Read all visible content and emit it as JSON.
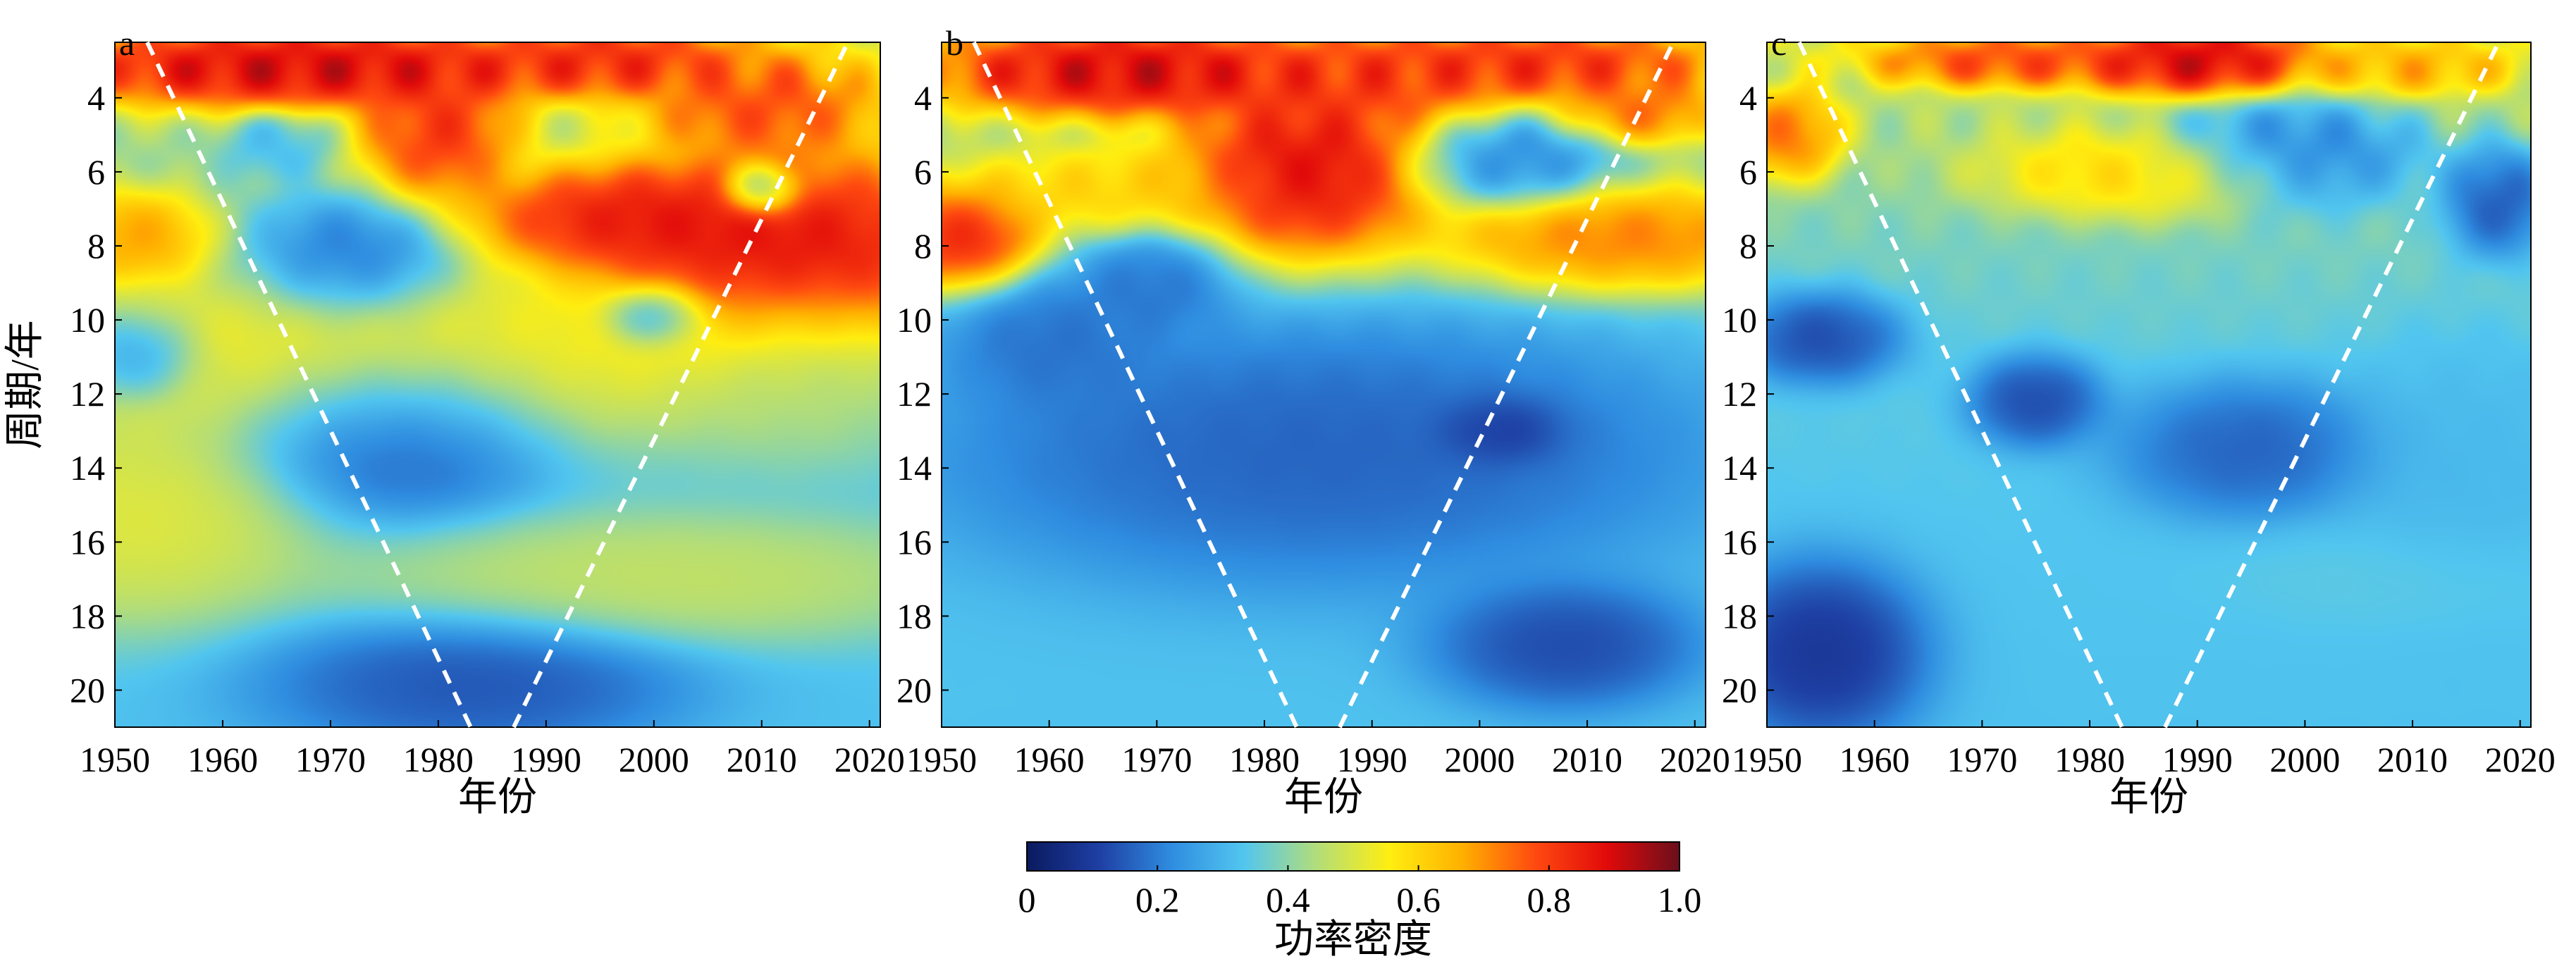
{
  "chart_data": [
    {
      "type": "heatmap",
      "panel_label": "a",
      "xlabel": "年份",
      "ylabel": "周期/年",
      "xlim": [
        1950,
        2021
      ],
      "ylim": [
        2.5,
        21
      ],
      "y_inverted": true,
      "xticks": [
        1950,
        1960,
        1970,
        1980,
        1990,
        2000,
        2010,
        2020
      ],
      "yticks": [
        4,
        6,
        8,
        10,
        12,
        14,
        16,
        18,
        20
      ],
      "cone_of_influence": {
        "left": [
          [
            1953,
            2.5
          ],
          [
            1983,
            21
          ]
        ],
        "right": [
          [
            1987,
            21
          ],
          [
            2018,
            2.5
          ]
        ]
      },
      "hotspots": [
        {
          "x": 1967,
          "y": 3.2,
          "rx": 20,
          "ry": 0.9,
          "v": 1.0
        },
        {
          "x": 2013,
          "y": 8.2,
          "rx": 16,
          "ry": 2.3,
          "v": 1.0
        },
        {
          "x": 1997,
          "y": 7.3,
          "rx": 12,
          "ry": 1.2,
          "v": 0.95
        },
        {
          "x": 1980,
          "y": 5.0,
          "rx": 6,
          "ry": 1.5,
          "v": 0.9
        },
        {
          "x": 2010,
          "y": 4.2,
          "rx": 9,
          "ry": 1.2,
          "v": 0.85
        },
        {
          "x": 1996,
          "y": 3.0,
          "rx": 10,
          "ry": 0.8,
          "v": 0.9
        },
        {
          "x": 1952,
          "y": 7.8,
          "rx": 6,
          "ry": 1.1,
          "v": 0.75
        },
        {
          "x": 1952,
          "y": 15.4,
          "rx": 14,
          "ry": 2.4,
          "v": 0.55
        },
        {
          "x": 1975,
          "y": 11.0,
          "rx": 30,
          "ry": 2.2,
          "v": 0.6
        },
        {
          "x": 2014,
          "y": 11.5,
          "rx": 10,
          "ry": 2.0,
          "v": 0.45
        },
        {
          "x": 2000,
          "y": 17.0,
          "rx": 25,
          "ry": 1.5,
          "v": 0.5
        }
      ],
      "coldspots": [
        {
          "x": 1976,
          "y": 13.0,
          "rx": 12,
          "ry": 2.0,
          "v": 0.08
        },
        {
          "x": 1983,
          "y": 19.8,
          "rx": 16,
          "ry": 1.6,
          "v": 0.1
        },
        {
          "x": 1972,
          "y": 8.5,
          "rx": 8,
          "ry": 1.4,
          "v": 0.12
        },
        {
          "x": 2000,
          "y": 9.9,
          "rx": 4,
          "ry": 0.7,
          "v": 0.15
        },
        {
          "x": 1952,
          "y": 11.0,
          "rx": 5,
          "ry": 1.0,
          "v": 0.15
        },
        {
          "x": 2010,
          "y": 6.5,
          "rx": 3,
          "ry": 0.6,
          "v": 0.2
        },
        {
          "x": 1965,
          "y": 5.3,
          "rx": 4,
          "ry": 0.7,
          "v": 0.3
        }
      ]
    },
    {
      "type": "heatmap",
      "panel_label": "b",
      "xlabel": "年份",
      "ylabel": "",
      "xlim": [
        1950,
        2021
      ],
      "ylim": [
        2.5,
        21
      ],
      "y_inverted": true,
      "xticks": [
        1950,
        1960,
        1970,
        1980,
        1990,
        2000,
        2010,
        2020
      ],
      "yticks": [
        4,
        6,
        8,
        10,
        12,
        14,
        16,
        18,
        20
      ],
      "cone_of_influence": {
        "left": [
          [
            1953,
            2.5
          ],
          [
            1983,
            21
          ]
        ],
        "right": [
          [
            1987,
            21
          ],
          [
            2018,
            2.5
          ]
        ]
      },
      "hotspots": [
        {
          "x": 1967,
          "y": 3.3,
          "rx": 15,
          "ry": 1.0,
          "v": 1.0
        },
        {
          "x": 1984,
          "y": 6.0,
          "rx": 10,
          "ry": 2.0,
          "v": 1.0
        },
        {
          "x": 1952,
          "y": 7.8,
          "rx": 6,
          "ry": 1.2,
          "v": 0.95
        },
        {
          "x": 2013,
          "y": 7.8,
          "rx": 14,
          "ry": 1.2,
          "v": 0.8
        },
        {
          "x": 2005,
          "y": 3.1,
          "rx": 14,
          "ry": 0.8,
          "v": 0.9
        },
        {
          "x": 1990,
          "y": 3.5,
          "rx": 10,
          "ry": 1.0,
          "v": 0.85
        },
        {
          "x": 2015,
          "y": 4.3,
          "rx": 6,
          "ry": 0.8,
          "v": 0.8
        },
        {
          "x": 1965,
          "y": 6.5,
          "rx": 12,
          "ry": 1.0,
          "v": 0.65
        }
      ],
      "coldspots": [
        {
          "x": 1985,
          "y": 13.5,
          "rx": 30,
          "ry": 3.0,
          "v": 0.12
        },
        {
          "x": 2008,
          "y": 18.8,
          "rx": 10,
          "ry": 1.4,
          "v": 0.08
        },
        {
          "x": 2002,
          "y": 13.0,
          "rx": 5,
          "ry": 0.8,
          "v": 0.05
        },
        {
          "x": 1970,
          "y": 9.0,
          "rx": 6,
          "ry": 1.2,
          "v": 0.15
        },
        {
          "x": 2003,
          "y": 5.8,
          "rx": 8,
          "ry": 1.0,
          "v": 0.18
        },
        {
          "x": 1960,
          "y": 10.5,
          "rx": 8,
          "ry": 1.5,
          "v": 0.15
        }
      ]
    },
    {
      "type": "heatmap",
      "panel_label": "c",
      "xlabel": "年份",
      "ylabel": "",
      "xlim": [
        1950,
        2021
      ],
      "ylim": [
        2.5,
        21
      ],
      "y_inverted": true,
      "xticks": [
        1950,
        1960,
        1970,
        1980,
        1990,
        2000,
        2010,
        2020
      ],
      "yticks": [
        4,
        6,
        8,
        10,
        12,
        14,
        16,
        18,
        20
      ],
      "cone_of_influence": {
        "left": [
          [
            1953,
            2.5
          ],
          [
            1983,
            21
          ]
        ],
        "right": [
          [
            1987,
            21
          ],
          [
            2018,
            2.5
          ]
        ]
      },
      "hotspots": [
        {
          "x": 1990,
          "y": 3.0,
          "rx": 9,
          "ry": 0.8,
          "v": 1.0
        },
        {
          "x": 1972,
          "y": 3.0,
          "rx": 10,
          "ry": 0.6,
          "v": 0.85
        },
        {
          "x": 1952,
          "y": 5.0,
          "rx": 4,
          "ry": 1.0,
          "v": 0.8
        },
        {
          "x": 1985,
          "y": 6.0,
          "rx": 12,
          "ry": 1.0,
          "v": 0.65
        },
        {
          "x": 2010,
          "y": 3.2,
          "rx": 8,
          "ry": 0.6,
          "v": 0.7
        },
        {
          "x": 2015,
          "y": 14.0,
          "rx": 10,
          "ry": 3.0,
          "v": 0.3
        },
        {
          "x": 2010,
          "y": 17.0,
          "rx": 14,
          "ry": 1.2,
          "v": 0.35
        }
      ],
      "coldspots": [
        {
          "x": 1955,
          "y": 19.0,
          "rx": 8,
          "ry": 2.0,
          "v": 0.03
        },
        {
          "x": 1955,
          "y": 10.5,
          "rx": 6,
          "ry": 1.0,
          "v": 0.08
        },
        {
          "x": 1975,
          "y": 12.2,
          "rx": 5,
          "ry": 1.0,
          "v": 0.08
        },
        {
          "x": 1995,
          "y": 13.5,
          "rx": 10,
          "ry": 1.5,
          "v": 0.12
        },
        {
          "x": 2018,
          "y": 6.8,
          "rx": 4,
          "ry": 1.2,
          "v": 0.1
        },
        {
          "x": 1998,
          "y": 5.5,
          "rx": 10,
          "ry": 1.2,
          "v": 0.15
        }
      ]
    }
  ],
  "colorbar": {
    "label": "功率密度",
    "min": 0,
    "max": 1.0,
    "ticks": [
      "0",
      "0.2",
      "0.4",
      "0.6",
      "0.8",
      "1.0"
    ],
    "colors": [
      "#0a1a5e",
      "#1e3fa4",
      "#2f8de0",
      "#52c6ef",
      "#b2dd7a",
      "#ffee10",
      "#ffb000",
      "#ff4a10",
      "#e10a0a",
      "#6a0f1c"
    ]
  }
}
